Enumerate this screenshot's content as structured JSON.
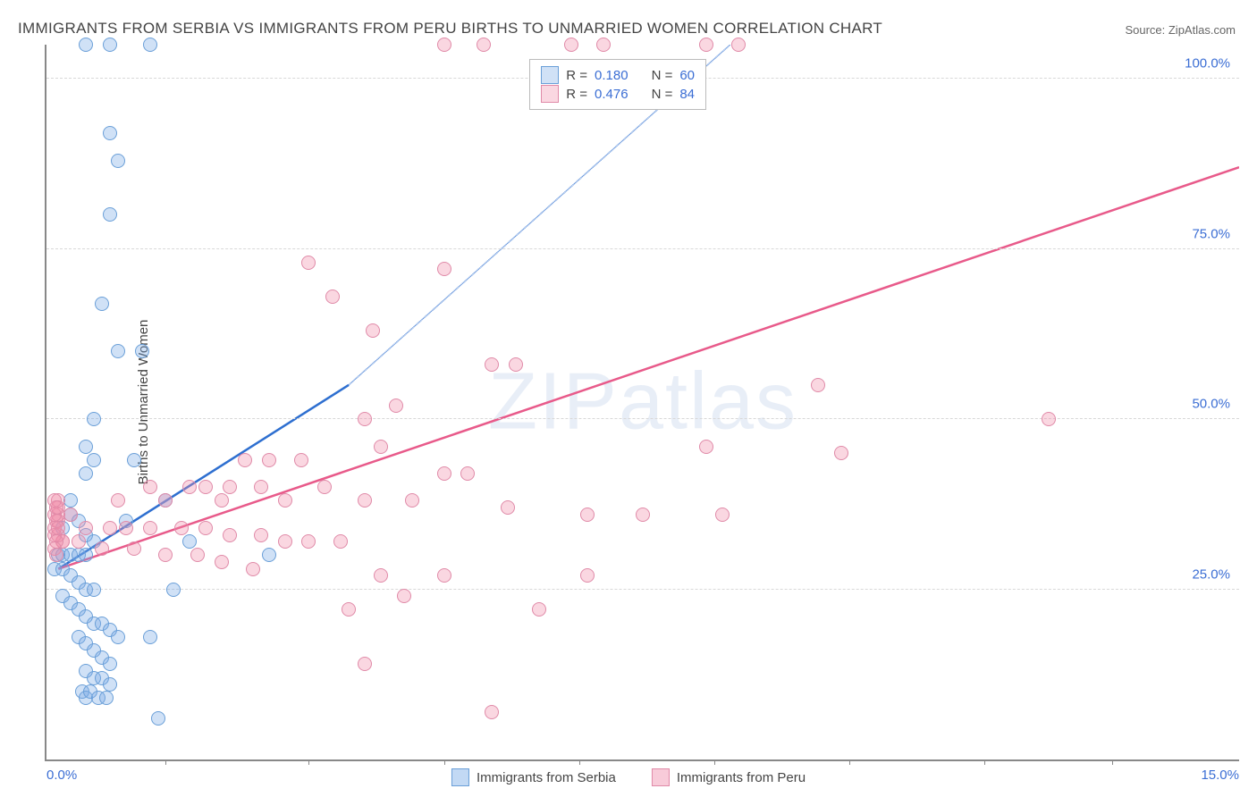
{
  "title": "IMMIGRANTS FROM SERBIA VS IMMIGRANTS FROM PERU BIRTHS TO UNMARRIED WOMEN CORRELATION CHART",
  "source": "Source: ZipAtlas.com",
  "ylabel": "Births to Unmarried Women",
  "watermark": "ZIPatlas",
  "chart": {
    "type": "scatter",
    "xlim": [
      0,
      15
    ],
    "ylim": [
      0,
      105
    ],
    "xtick_label_left": "0.0%",
    "xtick_label_right": "15.0%",
    "ytick_labels": [
      "25.0%",
      "50.0%",
      "75.0%",
      "100.0%"
    ],
    "ytick_values": [
      25,
      50,
      75,
      100
    ],
    "xtick_marks": [
      1.5,
      3.3,
      5.0,
      6.7,
      8.4,
      10.1,
      11.8,
      13.4
    ],
    "grid_color": "#d8d8d8",
    "background_color": "#ffffff",
    "point_radius": 8,
    "point_stroke_width": 1.5,
    "series": [
      {
        "name": "Immigrants from Serbia",
        "color_fill": "rgba(120,170,230,0.35)",
        "color_stroke": "#6a9fd8",
        "color_line": "#2e6fd0",
        "r_label": "R =",
        "r_value": "0.180",
        "n_label": "N =",
        "n_value": "60",
        "regression": {
          "x1": 0.15,
          "y1": 28,
          "x2": 3.8,
          "y2": 55,
          "dash_x2": 8.6,
          "dash_y2": 105
        },
        "points": [
          [
            0.5,
            105
          ],
          [
            0.8,
            105
          ],
          [
            1.3,
            105
          ],
          [
            0.8,
            92
          ],
          [
            0.9,
            88
          ],
          [
            0.8,
            80
          ],
          [
            0.7,
            67
          ],
          [
            0.9,
            60
          ],
          [
            1.2,
            60
          ],
          [
            0.6,
            50
          ],
          [
            0.5,
            46
          ],
          [
            0.6,
            44
          ],
          [
            0.5,
            42
          ],
          [
            1.1,
            44
          ],
          [
            0.3,
            38
          ],
          [
            0.3,
            36
          ],
          [
            0.4,
            35
          ],
          [
            0.2,
            34
          ],
          [
            0.5,
            33
          ],
          [
            0.6,
            32
          ],
          [
            0.15,
            30
          ],
          [
            0.2,
            30
          ],
          [
            0.3,
            30
          ],
          [
            0.4,
            30
          ],
          [
            0.5,
            30
          ],
          [
            0.1,
            28
          ],
          [
            0.2,
            28
          ],
          [
            0.3,
            27
          ],
          [
            0.4,
            26
          ],
          [
            0.5,
            25
          ],
          [
            0.6,
            25
          ],
          [
            0.2,
            24
          ],
          [
            0.3,
            23
          ],
          [
            0.4,
            22
          ],
          [
            0.5,
            21
          ],
          [
            0.6,
            20
          ],
          [
            0.7,
            20
          ],
          [
            0.8,
            19
          ],
          [
            0.9,
            18
          ],
          [
            0.4,
            18
          ],
          [
            0.5,
            17
          ],
          [
            0.6,
            16
          ],
          [
            0.7,
            15
          ],
          [
            0.8,
            14
          ],
          [
            0.5,
            13
          ],
          [
            0.6,
            12
          ],
          [
            0.7,
            12
          ],
          [
            0.8,
            11
          ],
          [
            0.45,
            10
          ],
          [
            0.5,
            9
          ],
          [
            0.55,
            10
          ],
          [
            0.65,
            9
          ],
          [
            0.75,
            9
          ],
          [
            1.3,
            18
          ],
          [
            1.4,
            6
          ],
          [
            1.0,
            35
          ],
          [
            1.5,
            38
          ],
          [
            2.8,
            30
          ],
          [
            1.8,
            32
          ],
          [
            1.6,
            25
          ]
        ]
      },
      {
        "name": "Immigrants from Peru",
        "color_fill": "rgba(240,140,170,0.35)",
        "color_stroke": "#e08aa8",
        "color_line": "#e85a8a",
        "r_label": "R =",
        "r_value": "0.476",
        "n_label": "N =",
        "n_value": "84",
        "regression": {
          "x1": 0.15,
          "y1": 28,
          "x2": 15,
          "y2": 87
        },
        "points": [
          [
            5.0,
            105
          ],
          [
            5.5,
            105
          ],
          [
            6.6,
            105
          ],
          [
            7.0,
            105
          ],
          [
            8.3,
            105
          ],
          [
            8.7,
            105
          ],
          [
            3.3,
            73
          ],
          [
            5.0,
            72
          ],
          [
            3.6,
            68
          ],
          [
            4.1,
            63
          ],
          [
            5.6,
            58
          ],
          [
            5.9,
            58
          ],
          [
            9.7,
            55
          ],
          [
            12.6,
            50
          ],
          [
            4.4,
            52
          ],
          [
            4.0,
            50
          ],
          [
            8.3,
            46
          ],
          [
            10.0,
            45
          ],
          [
            2.5,
            44
          ],
          [
            2.8,
            44
          ],
          [
            3.2,
            44
          ],
          [
            4.2,
            46
          ],
          [
            5.0,
            42
          ],
          [
            5.3,
            42
          ],
          [
            1.3,
            40
          ],
          [
            1.8,
            40
          ],
          [
            2.0,
            40
          ],
          [
            2.3,
            40
          ],
          [
            2.7,
            40
          ],
          [
            3.5,
            40
          ],
          [
            0.9,
            38
          ],
          [
            1.5,
            38
          ],
          [
            2.2,
            38
          ],
          [
            3.0,
            38
          ],
          [
            4.0,
            38
          ],
          [
            4.6,
            38
          ],
          [
            5.8,
            37
          ],
          [
            6.8,
            36
          ],
          [
            7.5,
            36
          ],
          [
            8.5,
            36
          ],
          [
            0.3,
            36
          ],
          [
            0.5,
            34
          ],
          [
            0.8,
            34
          ],
          [
            1.0,
            34
          ],
          [
            1.3,
            34
          ],
          [
            1.7,
            34
          ],
          [
            2.0,
            34
          ],
          [
            2.3,
            33
          ],
          [
            2.7,
            33
          ],
          [
            3.0,
            32
          ],
          [
            3.3,
            32
          ],
          [
            3.7,
            32
          ],
          [
            0.2,
            32
          ],
          [
            0.4,
            32
          ],
          [
            0.7,
            31
          ],
          [
            1.1,
            31
          ],
          [
            1.5,
            30
          ],
          [
            1.9,
            30
          ],
          [
            2.2,
            29
          ],
          [
            2.6,
            28
          ],
          [
            0.2,
            32
          ],
          [
            0.15,
            35
          ],
          [
            0.15,
            33
          ],
          [
            4.2,
            27
          ],
          [
            5.0,
            27
          ],
          [
            6.8,
            27
          ],
          [
            3.8,
            22
          ],
          [
            4.5,
            24
          ],
          [
            4.0,
            14
          ],
          [
            5.6,
            7
          ],
          [
            6.2,
            22
          ],
          [
            0.15,
            36
          ],
          [
            0.1,
            34
          ],
          [
            0.1,
            33
          ],
          [
            0.12,
            32
          ],
          [
            0.12,
            35
          ],
          [
            0.1,
            36
          ],
          [
            0.15,
            37
          ],
          [
            0.1,
            31
          ],
          [
            0.12,
            30
          ],
          [
            0.15,
            38
          ],
          [
            0.1,
            38
          ],
          [
            0.12,
            37
          ],
          [
            0.15,
            34
          ]
        ]
      }
    ],
    "legend_stats_pos": {
      "top_pct": 2,
      "left_pct": 40.5
    },
    "bottom_legend": [
      {
        "label": "Immigrants from Serbia",
        "fill": "rgba(120,170,230,0.45)",
        "stroke": "#6a9fd8"
      },
      {
        "label": "Immigrants from Peru",
        "fill": "rgba(240,140,170,0.45)",
        "stroke": "#e08aa8"
      }
    ]
  }
}
